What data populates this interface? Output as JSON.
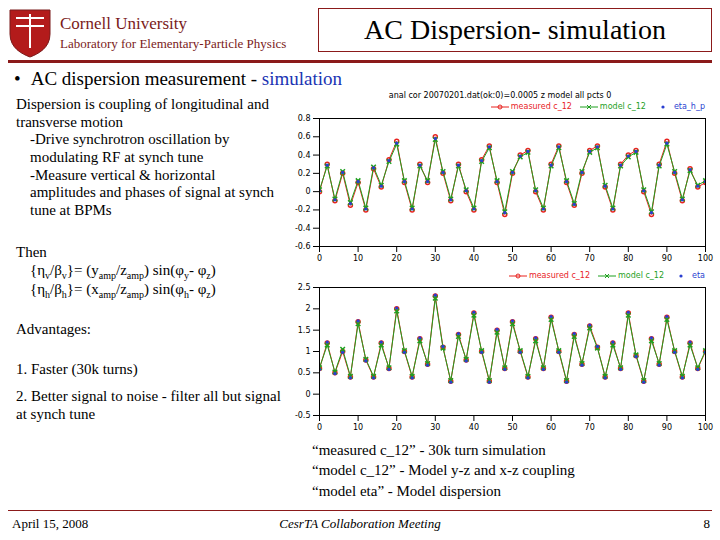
{
  "header": {
    "institution": "Cornell University",
    "lab": "Laboratory for Elementary-Particle Physics",
    "title": "AC Dispersion- simulation"
  },
  "bullet": {
    "text": "AC dispersion measurement  - ",
    "highlight": "simulation"
  },
  "body": {
    "intro": "Dispersion is coupling of longitudinal and transverse motion",
    "steps": [
      "-Drive synchrotron oscillation by modulating RF at synch tune",
      "-Measure vertical & horizontal amplitudes and phases of signal at synch tune at BPMs"
    ],
    "then": "Then",
    "formulas": [
      [
        {
          "t": "{η"
        },
        {
          "t": "v",
          "sub": true
        },
        {
          "t": "/β"
        },
        {
          "t": "v",
          "sub": true
        },
        {
          "t": "}= (y"
        },
        {
          "t": "amp",
          "sub": true
        },
        {
          "t": "/z"
        },
        {
          "t": "amp",
          "sub": true
        },
        {
          "t": ") sin(φ"
        },
        {
          "t": "y",
          "sub": true
        },
        {
          "t": "- φ"
        },
        {
          "t": "z",
          "sub": true
        },
        {
          "t": ")"
        }
      ],
      [
        {
          "t": "{η"
        },
        {
          "t": "h",
          "sub": true
        },
        {
          "t": "/β"
        },
        {
          "t": "h",
          "sub": true
        },
        {
          "t": "}= (x"
        },
        {
          "t": "amp",
          "sub": true
        },
        {
          "t": "/z"
        },
        {
          "t": "amp",
          "sub": true
        },
        {
          "t": ") sin(φ"
        },
        {
          "t": "h",
          "sub": true
        },
        {
          "t": "- φ"
        },
        {
          "t": "z",
          "sub": true
        },
        {
          "t": ")"
        }
      ]
    ],
    "advantages_title": "Advantages:",
    "advantages": [
      "1. Faster (30k turns)",
      "2. Better signal to noise - filter all but signal at  synch tune"
    ]
  },
  "captions": [
    "“measured c_12”  - 30k turn simulation",
    "“model c_12”  - Model y-z and x-z coupling",
    "“model eta”    - Model dispersion"
  ],
  "footer": {
    "date": "April 15, 2008",
    "meeting": "CesrTA Collaboration Meeting",
    "page": 8
  },
  "chart_data": [
    {
      "type": "line",
      "title": "anal cor 20070201.dat(ok:0)=0.0005 z model all pcts 0",
      "x": [
        0,
        2,
        4,
        6,
        8,
        10,
        12,
        14,
        16,
        18,
        20,
        22,
        24,
        26,
        28,
        30,
        32,
        34,
        36,
        38,
        40,
        42,
        44,
        46,
        48,
        50,
        52,
        54,
        56,
        58,
        60,
        62,
        64,
        66,
        68,
        70,
        72,
        74,
        76,
        78,
        80,
        82,
        84,
        86,
        88,
        90,
        92,
        94,
        96,
        98,
        100
      ],
      "xlim": [
        0,
        100
      ],
      "xticks": [
        0,
        10,
        20,
        30,
        40,
        50,
        60,
        70,
        80,
        90,
        100
      ],
      "ylim": [
        -0.6,
        0.8
      ],
      "yticks": [
        -0.6,
        -0.4,
        -0.2,
        0,
        0.2,
        0.4,
        0.6,
        0.8
      ],
      "grid": false,
      "legend": "top-right",
      "series": [
        {
          "name": "measured c_12",
          "color": "#e8231f",
          "marker": "circle",
          "line_style": "solid",
          "values": [
            0.0,
            0.3,
            -0.1,
            0.2,
            -0.15,
            0.1,
            -0.2,
            0.25,
            0.05,
            0.35,
            0.55,
            0.1,
            -0.2,
            0.3,
            0.1,
            0.6,
            0.2,
            -0.1,
            0.3,
            0.0,
            -0.2,
            0.35,
            0.5,
            0.1,
            -0.25,
            0.2,
            0.4,
            0.45,
            0.0,
            -0.2,
            0.3,
            0.5,
            0.1,
            -0.15,
            0.2,
            0.45,
            0.5,
            0.05,
            -0.2,
            0.3,
            0.4,
            0.45,
            0.0,
            -0.25,
            0.3,
            0.55,
            0.2,
            -0.1,
            0.25,
            0.05,
            0.1
          ]
        },
        {
          "name": "model c_12",
          "color": "#1fa01f",
          "marker": "times",
          "line_style": "solid",
          "values": [
            0.02,
            0.28,
            -0.08,
            0.22,
            -0.12,
            0.12,
            -0.18,
            0.27,
            0.07,
            0.33,
            0.52,
            0.12,
            -0.18,
            0.28,
            0.12,
            0.57,
            0.22,
            -0.08,
            0.28,
            0.02,
            -0.18,
            0.33,
            0.48,
            0.12,
            -0.22,
            0.22,
            0.38,
            0.43,
            0.02,
            -0.18,
            0.28,
            0.48,
            0.12,
            -0.13,
            0.22,
            0.43,
            0.48,
            0.07,
            -0.18,
            0.28,
            0.38,
            0.43,
            0.02,
            -0.22,
            0.28,
            0.52,
            0.22,
            -0.08,
            0.23,
            0.07,
            0.12
          ]
        },
        {
          "name": "eta_h_p",
          "color": "#2a3fd0",
          "marker": "dot",
          "line_style": "none",
          "values": [
            0.01,
            0.29,
            -0.09,
            0.21,
            -0.13,
            0.11,
            -0.19,
            0.26,
            0.06,
            0.34,
            0.53,
            0.11,
            -0.19,
            0.29,
            0.11,
            0.58,
            0.21,
            -0.09,
            0.29,
            0.01,
            -0.19,
            0.34,
            0.49,
            0.11,
            -0.23,
            0.21,
            0.39,
            0.44,
            0.01,
            -0.19,
            0.29,
            0.49,
            0.11,
            -0.14,
            0.21,
            0.44,
            0.49,
            0.06,
            -0.19,
            0.29,
            0.39,
            0.44,
            0.01,
            -0.23,
            0.29,
            0.53,
            0.21,
            -0.09,
            0.24,
            0.06,
            0.11
          ]
        }
      ]
    },
    {
      "type": "line",
      "x": [
        0,
        2,
        4,
        6,
        8,
        10,
        12,
        14,
        16,
        18,
        20,
        22,
        24,
        26,
        28,
        30,
        32,
        34,
        36,
        38,
        40,
        42,
        44,
        46,
        48,
        50,
        52,
        54,
        56,
        58,
        60,
        62,
        64,
        66,
        68,
        70,
        72,
        74,
        76,
        78,
        80,
        82,
        84,
        86,
        88,
        90,
        92,
        94,
        96,
        98,
        100
      ],
      "xlim": [
        0,
        100
      ],
      "xticks": [
        0,
        10,
        20,
        30,
        40,
        50,
        60,
        70,
        80,
        90,
        100
      ],
      "ylim": [
        -0.5,
        2.5
      ],
      "yticks": [
        -0.5,
        0,
        0.5,
        1,
        1.5,
        2,
        2.5
      ],
      "grid": false,
      "legend": "top-right",
      "series": [
        {
          "name": "measured c_12",
          "color": "#e8231f",
          "marker": "circle",
          "line_style": "solid",
          "values": [
            0.6,
            1.2,
            0.5,
            1.0,
            0.4,
            1.7,
            0.8,
            0.4,
            1.2,
            0.6,
            2.0,
            1.0,
            0.4,
            1.3,
            0.7,
            2.3,
            1.1,
            0.3,
            1.4,
            0.8,
            1.9,
            1.0,
            0.3,
            1.5,
            0.6,
            1.7,
            1.0,
            0.4,
            1.3,
            0.6,
            1.8,
            1.0,
            0.3,
            1.4,
            0.7,
            1.6,
            1.1,
            0.4,
            1.2,
            0.6,
            1.9,
            0.9,
            0.3,
            1.3,
            0.7,
            1.8,
            1.0,
            0.4,
            1.2,
            0.6,
            1.0
          ]
        },
        {
          "name": "model c_12",
          "color": "#1fa01f",
          "marker": "times",
          "line_style": "solid",
          "values": [
            0.62,
            1.15,
            0.52,
            1.05,
            0.42,
            1.65,
            0.82,
            0.42,
            1.15,
            0.62,
            1.95,
            1.02,
            0.42,
            1.25,
            0.72,
            2.25,
            1.08,
            0.32,
            1.35,
            0.82,
            1.85,
            1.02,
            0.32,
            1.45,
            0.62,
            1.65,
            1.02,
            0.42,
            1.25,
            0.62,
            1.75,
            1.02,
            0.32,
            1.35,
            0.72,
            1.55,
            1.08,
            0.42,
            1.15,
            0.62,
            1.85,
            0.92,
            0.32,
            1.25,
            0.72,
            1.75,
            1.02,
            0.42,
            1.15,
            0.62,
            1.02
          ]
        },
        {
          "name": "eta",
          "color": "#2a3fd0",
          "marker": "dot",
          "line_style": "none",
          "values": [
            0.58,
            1.22,
            0.48,
            0.98,
            0.38,
            1.72,
            0.78,
            0.38,
            1.22,
            0.58,
            2.02,
            0.98,
            0.38,
            1.32,
            0.68,
            2.32,
            1.12,
            0.28,
            1.42,
            0.78,
            1.92,
            0.98,
            0.28,
            1.52,
            0.58,
            1.72,
            0.98,
            0.38,
            1.32,
            0.58,
            1.82,
            0.98,
            0.28,
            1.42,
            0.68,
            1.62,
            1.12,
            0.38,
            1.22,
            0.58,
            1.92,
            0.88,
            0.28,
            1.32,
            0.68,
            1.82,
            0.98,
            0.38,
            1.22,
            0.58,
            0.98
          ]
        }
      ]
    }
  ]
}
